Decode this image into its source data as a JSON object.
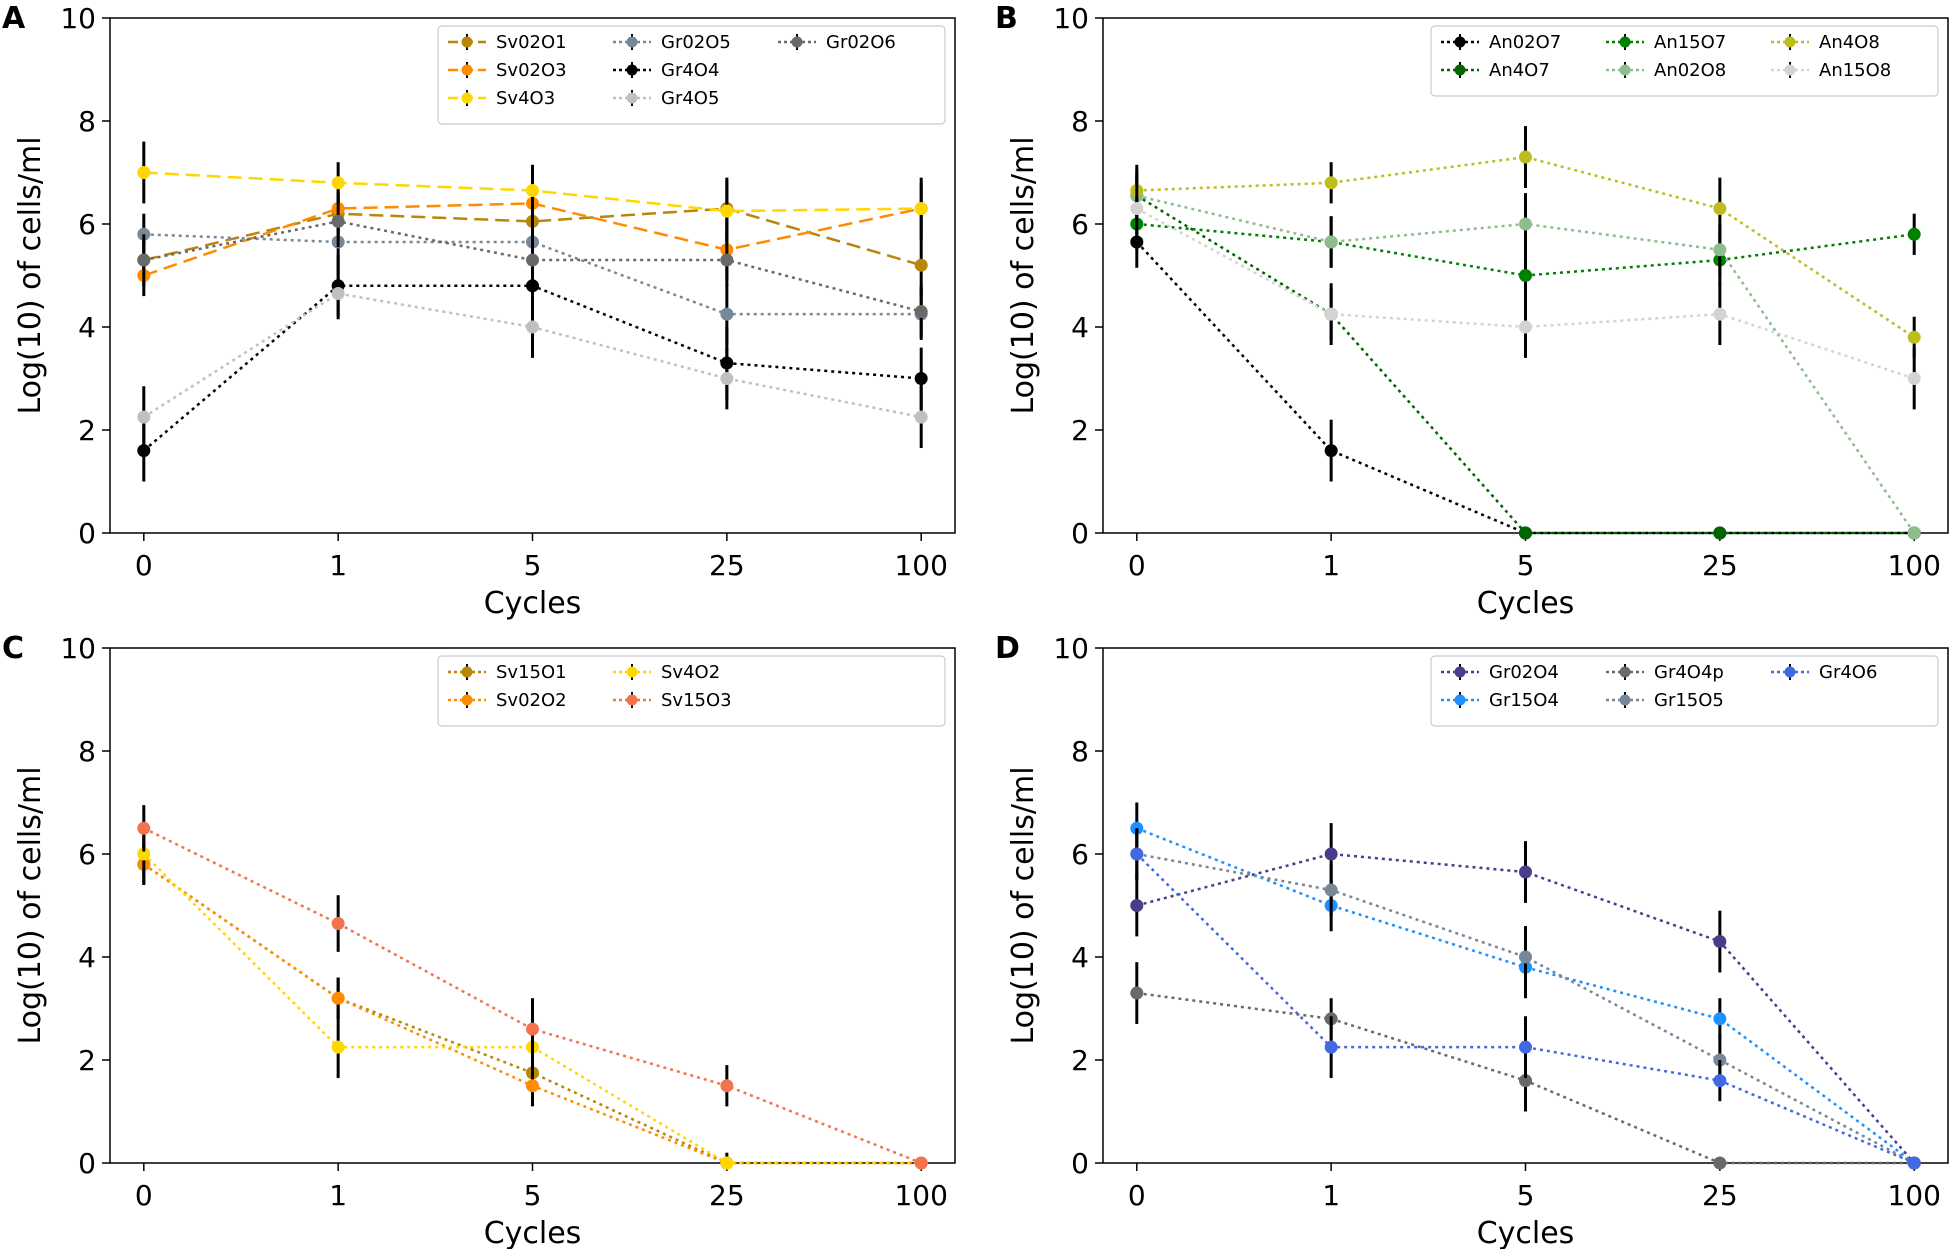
{
  "colors": {
    "axis": "#000000",
    "errorbar": "#000000",
    "legend_border": "#cccccc",
    "background": "#ffffff"
  },
  "chart_data": [
    {
      "panel": "A",
      "type": "line",
      "categories": [
        "0",
        "1",
        "5",
        "25",
        "100"
      ],
      "xlabel": "Cycles",
      "ylabel": "Log(10) of cells/ml",
      "ylim": [
        0,
        10
      ],
      "yticks": [
        "0",
        "2",
        "4",
        "6",
        "8",
        "10"
      ],
      "legend_location": "top-right",
      "legend_columns": 3,
      "series": [
        {
          "name": "Sv02O1",
          "color": "#b8860b",
          "style": "dashed",
          "values": [
            5.3,
            6.2,
            6.05,
            6.3,
            5.2
          ],
          "err": [
            0.5,
            0.4,
            0.4,
            0.6,
            0.6
          ]
        },
        {
          "name": "Sv02O3",
          "color": "#ff8c00",
          "style": "dashed",
          "values": [
            5.0,
            6.3,
            6.4,
            5.5,
            6.3
          ],
          "err": [
            0.4,
            0.5,
            0.6,
            0.6,
            0.5
          ]
        },
        {
          "name": "Sv4O3",
          "color": "#ffd700",
          "style": "dashed",
          "values": [
            7.0,
            6.8,
            6.65,
            6.25,
            6.3
          ],
          "err": [
            0.6,
            0.4,
            0.5,
            0.6,
            0.6
          ]
        },
        {
          "name": "Gr02O5",
          "color": "#778899",
          "style": "dotted",
          "values": [
            5.8,
            5.65,
            5.65,
            4.25,
            4.25
          ],
          "err": [
            0.4,
            0.5,
            0.4,
            0.6,
            0.5
          ]
        },
        {
          "name": "Gr4O4",
          "color": "#000000",
          "style": "dotted",
          "values": [
            1.6,
            4.8,
            4.8,
            3.3,
            3.0
          ],
          "err": [
            0.6,
            0.6,
            0.5,
            0.7,
            0.6
          ]
        },
        {
          "name": "Gr4O5",
          "color": "#c0c0c0",
          "style": "dotted",
          "values": [
            2.25,
            4.65,
            4.0,
            3.0,
            2.25
          ],
          "err": [
            0.6,
            0.5,
            0.6,
            0.6,
            0.6
          ]
        },
        {
          "name": "Gr02O6",
          "color": "#696969",
          "style": "dotted",
          "values": [
            5.3,
            6.05,
            5.3,
            5.3,
            4.3
          ],
          "err": [
            0.5,
            0.5,
            0.5,
            0.5,
            0.5
          ]
        }
      ]
    },
    {
      "panel": "B",
      "type": "line",
      "categories": [
        "0",
        "1",
        "5",
        "25",
        "100"
      ],
      "xlabel": "Cycles",
      "ylabel": "Log(10) of cells/ml",
      "ylim": [
        0,
        10
      ],
      "yticks": [
        "0",
        "2",
        "4",
        "6",
        "8",
        "10"
      ],
      "legend_location": "top-right",
      "legend_columns": 3,
      "series": [
        {
          "name": "An02O7",
          "color": "#000000",
          "style": "dotted",
          "values": [
            5.65,
            1.6,
            0,
            0,
            0
          ],
          "err": [
            0.5,
            0.6,
            0,
            0,
            0
          ]
        },
        {
          "name": "An4O7",
          "color": "#006400",
          "style": "dotted",
          "values": [
            6.55,
            4.25,
            0,
            0,
            0
          ],
          "err": [
            0.5,
            0.6,
            0,
            0,
            0
          ]
        },
        {
          "name": "An15O7",
          "color": "#008000",
          "style": "dotted",
          "values": [
            6.0,
            5.65,
            5.0,
            5.3,
            5.8
          ],
          "err": [
            0.5,
            0.5,
            0.6,
            0.5,
            0.4
          ]
        },
        {
          "name": "An02O8",
          "color": "#8fbc8f",
          "style": "dotted",
          "values": [
            6.55,
            5.65,
            6.0,
            5.5,
            0
          ],
          "err": [
            0.4,
            0.5,
            0.6,
            0.5,
            0
          ]
        },
        {
          "name": "An4O8",
          "color": "#bdbd1e",
          "style": "dotted",
          "values": [
            6.65,
            6.8,
            7.3,
            6.3,
            3.8
          ],
          "err": [
            0.5,
            0.4,
            0.6,
            0.6,
            0.4
          ]
        },
        {
          "name": "An15O8",
          "color": "#d3d3d3",
          "style": "dotted",
          "values": [
            6.3,
            4.25,
            4.0,
            4.25,
            3.0
          ],
          "err": [
            0.5,
            0.5,
            0.6,
            0.6,
            0.6
          ]
        }
      ]
    },
    {
      "panel": "C",
      "type": "line",
      "categories": [
        "0",
        "1",
        "5",
        "25",
        "100"
      ],
      "xlabel": "Cycles",
      "ylabel": "Log(10) of cells/ml",
      "ylim": [
        0,
        10
      ],
      "yticks": [
        "0",
        "2",
        "4",
        "6",
        "8",
        "10"
      ],
      "legend_location": "top-right",
      "legend_columns": 3,
      "series": [
        {
          "name": "Sv15O1",
          "color": "#b8860b",
          "style": "dotted",
          "values": [
            5.8,
            3.2,
            1.75,
            0,
            0
          ],
          "err": [
            0.4,
            0.4,
            0.4,
            0.2,
            0
          ]
        },
        {
          "name": "Sv02O2",
          "color": "#ff8c00",
          "style": "dotted",
          "values": [
            5.8,
            3.2,
            1.5,
            0,
            0
          ],
          "err": [
            0.4,
            0.4,
            0.4,
            0,
            0
          ]
        },
        {
          "name": "Sv4O2",
          "color": "#ffd700",
          "style": "dotted",
          "values": [
            6.0,
            2.25,
            2.25,
            0,
            0
          ],
          "err": [
            0.4,
            0.6,
            0.6,
            0,
            0
          ]
        },
        {
          "name": "Sv15O3",
          "color": "#f4734f",
          "style": "dotted",
          "values": [
            6.5,
            4.65,
            2.6,
            1.5,
            0
          ],
          "err": [
            0.45,
            0.55,
            0.6,
            0.4,
            0
          ]
        }
      ]
    },
    {
      "panel": "D",
      "type": "line",
      "categories": [
        "0",
        "1",
        "5",
        "25",
        "100"
      ],
      "xlabel": "Cycles",
      "ylabel": "Log(10) of cells/ml",
      "ylim": [
        0,
        10
      ],
      "yticks": [
        "0",
        "2",
        "4",
        "6",
        "8",
        "10"
      ],
      "legend_location": "top-right",
      "legend_columns": 3,
      "series": [
        {
          "name": "Gr02O4",
          "color": "#483d8b",
          "style": "dotted",
          "values": [
            5.0,
            6.0,
            5.65,
            4.3,
            0
          ],
          "err": [
            0.6,
            0.6,
            0.6,
            0.6,
            0
          ]
        },
        {
          "name": "Gr15O4",
          "color": "#1e90ff",
          "style": "dotted",
          "values": [
            6.5,
            5.0,
            3.8,
            2.8,
            0
          ],
          "err": [
            0.5,
            0.5,
            0.6,
            0.4,
            0
          ]
        },
        {
          "name": "Gr4O4p",
          "color": "#696969",
          "style": "dotted",
          "values": [
            3.3,
            2.8,
            1.6,
            0,
            0
          ],
          "err": [
            0.6,
            0.4,
            0.6,
            0,
            0
          ]
        },
        {
          "name": "Gr15O5",
          "color": "#778899",
          "style": "dotted",
          "values": [
            6.0,
            5.3,
            4.0,
            2.0,
            0
          ],
          "err": [
            0.5,
            0.5,
            0.6,
            0.5,
            0
          ]
        },
        {
          "name": "Gr4O6",
          "color": "#4169e1",
          "style": "dotted",
          "values": [
            6.0,
            2.25,
            2.25,
            1.6,
            0
          ],
          "err": [
            0.5,
            0.6,
            0.6,
            0.4,
            0
          ]
        }
      ]
    }
  ]
}
